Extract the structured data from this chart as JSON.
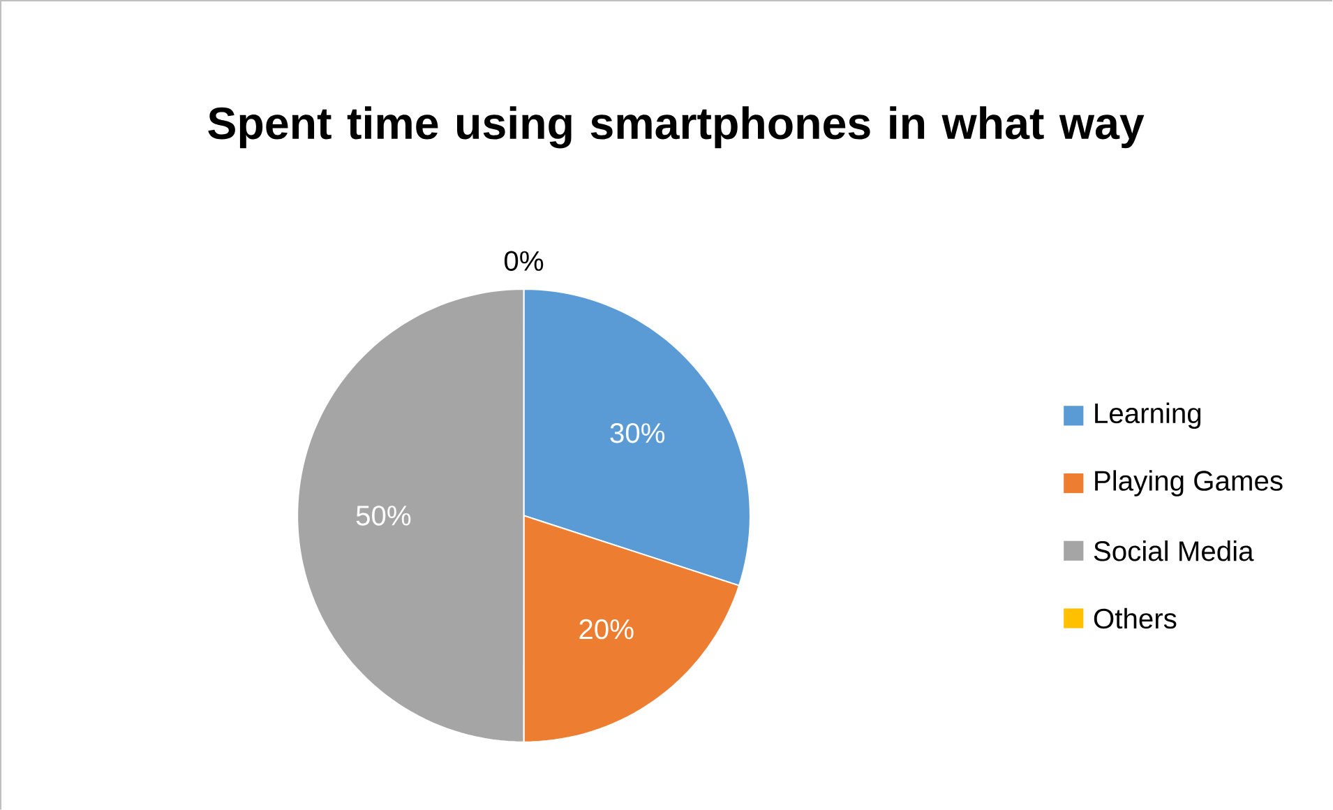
{
  "chart_data": {
    "type": "pie",
    "title": "Spent time using smartphones in what way",
    "categories": [
      "Learning",
      "Playing Games",
      "Social Media",
      "Others"
    ],
    "values": [
      30,
      20,
      50,
      0
    ],
    "colors": [
      "#5b9bd5",
      "#ed7d31",
      "#a5a5a5",
      "#ffc000"
    ],
    "value_labels": [
      "30%",
      "20%",
      "50%",
      "0%"
    ],
    "legend": "right"
  }
}
